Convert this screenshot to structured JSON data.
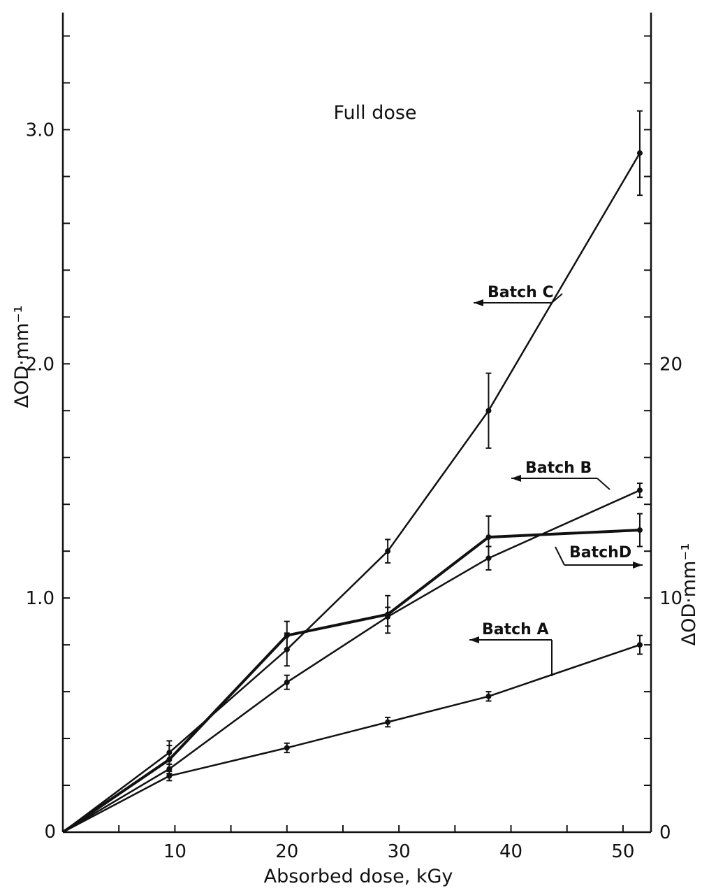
{
  "chart_data": {
    "type": "line",
    "title": "Full dose",
    "xlabel": "Absorbed dose, kGy",
    "ylabel": "ΔOD·mm⁻¹",
    "y2label": "ΔOD·mm⁻¹",
    "xlim": [
      0,
      52.5
    ],
    "ylim": [
      0,
      3.5
    ],
    "y2lim": [
      0,
      35
    ],
    "x_ticks": [
      10,
      20,
      30,
      40,
      50
    ],
    "y_ticks": [
      0,
      1.0,
      2.0,
      3.0
    ],
    "y_tick_labels": [
      "0",
      "1.0",
      "2.0",
      "3.0"
    ],
    "y2_ticks": [
      0,
      10,
      20
    ],
    "y2_tick_labels": [
      "0",
      "10",
      "20"
    ],
    "grid": false,
    "series": [
      {
        "name": "Batch A",
        "axis": "left",
        "x": [
          0,
          9.5,
          20,
          29,
          38,
          51.5
        ],
        "y": [
          0,
          0.24,
          0.36,
          0.47,
          0.58,
          0.8
        ],
        "err": [
          0,
          0.02,
          0.02,
          0.02,
          0.02,
          0.04
        ]
      },
      {
        "name": "Batch B",
        "axis": "left",
        "x": [
          0,
          9.5,
          20,
          29,
          38,
          51.5
        ],
        "y": [
          0,
          0.27,
          0.64,
          0.92,
          1.17,
          1.46
        ],
        "err": [
          0,
          0.02,
          0.03,
          0.04,
          0.05,
          0.03
        ]
      },
      {
        "name": "Batch C",
        "axis": "left",
        "x": [
          0,
          9.5,
          20,
          29,
          38,
          51.5
        ],
        "y": [
          0,
          0.34,
          0.78,
          1.2,
          1.8,
          2.9
        ],
        "err": [
          0,
          0.05,
          0.07,
          0.05,
          0.16,
          0.18
        ]
      },
      {
        "name": "Batch D",
        "axis": "right",
        "x": [
          0,
          9.5,
          20,
          29,
          38,
          51.5
        ],
        "y": [
          0,
          3.1,
          8.4,
          9.3,
          12.6,
          12.9
        ],
        "err": [
          0,
          0.6,
          0.6,
          0.8,
          0.9,
          0.7
        ]
      }
    ],
    "annotations": [
      {
        "text": "Batch C",
        "series": "Batch C"
      },
      {
        "text": "Batch B",
        "series": "Batch B"
      },
      {
        "text": "BatchD",
        "series": "Batch D"
      },
      {
        "text": "Batch A",
        "series": "Batch A"
      }
    ]
  }
}
